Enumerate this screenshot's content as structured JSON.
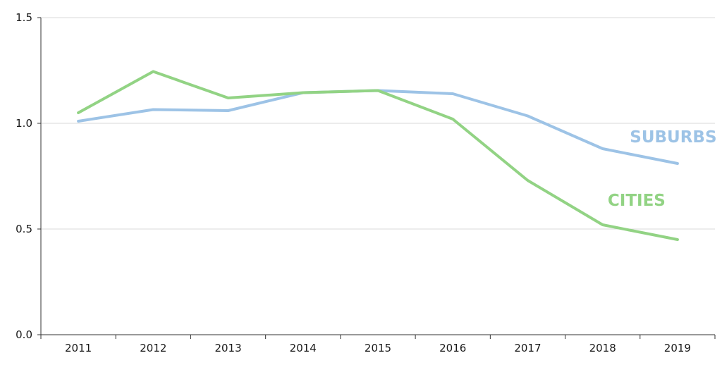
{
  "chart_data": {
    "type": "line",
    "x": [
      "2011",
      "2012",
      "2013",
      "2014",
      "2015",
      "2016",
      "2017",
      "2018",
      "2019"
    ],
    "series": [
      {
        "name": "SUBURBS",
        "color": "#9dc3e6",
        "values": [
          1.01,
          1.065,
          1.06,
          1.145,
          1.155,
          1.14,
          1.035,
          0.88,
          0.81
        ]
      },
      {
        "name": "CITIES",
        "color": "#92d384",
        "values": [
          1.05,
          1.245,
          1.12,
          1.145,
          1.155,
          1.02,
          0.73,
          0.52,
          0.45
        ]
      }
    ],
    "y_ticks": [
      "0.0",
      "0.5",
      "1.0",
      "1.5"
    ],
    "ylim": [
      0,
      1.5
    ],
    "grid": true,
    "gridline_color": "#d9d9d9",
    "axis_color": "#333333"
  }
}
